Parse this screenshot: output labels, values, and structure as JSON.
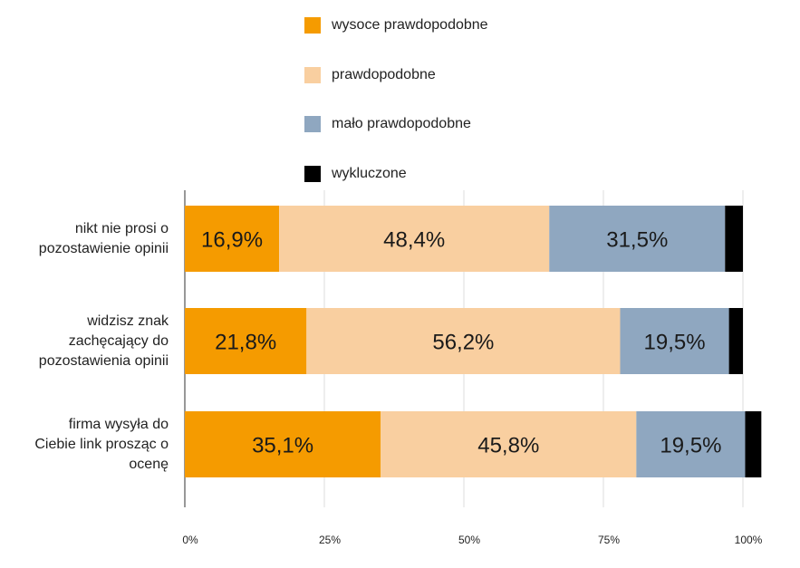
{
  "chart_data": {
    "type": "bar",
    "orientation": "horizontal",
    "stacked": true,
    "title": "",
    "xlabel": "",
    "ylabel": "",
    "xlim": [
      0,
      100
    ],
    "grid": true,
    "legend_position": "top",
    "categories": [
      "nikt nie prosi o pozostawienie opinii",
      "widzisz znak zachęcający do pozostawienia opinii",
      "firma wysyła do Ciebie link prosząc o ocenę"
    ],
    "category_lines": [
      [
        "nikt nie prosi o",
        "pozostawienie opinii"
      ],
      [
        "widzisz znak",
        "zachęcający do",
        "pozostawienia opinii"
      ],
      [
        "firma wysyła do",
        "Ciebie link prosząc o",
        "ocenę"
      ]
    ],
    "ticks": [
      0,
      25,
      50,
      75,
      100
    ],
    "tick_labels": [
      "0%",
      "25%",
      "50%",
      "75%",
      "100%"
    ],
    "series": [
      {
        "name": "wysoce prawdopodobne",
        "color": "#f59b00",
        "values": [
          16.9,
          21.8,
          35.1
        ],
        "labels": [
          "16,9%",
          "21,8%",
          "35,1%"
        ]
      },
      {
        "name": "prawdopodobne",
        "color": "#f9cfa0",
        "values": [
          48.4,
          56.2,
          45.8
        ],
        "labels": [
          "48,4%",
          "56,2%",
          "45,8%"
        ]
      },
      {
        "name": "mało prawdopodobne",
        "color": "#8fa7c0",
        "values": [
          31.5,
          19.5,
          19.5
        ],
        "labels": [
          "31,5%",
          "19,5%",
          "19,5%"
        ]
      },
      {
        "name": "wykluczone",
        "color": "#000000",
        "values": [
          3.2,
          2.5,
          2.9
        ],
        "labels": [
          "",
          "",
          ""
        ]
      }
    ]
  }
}
